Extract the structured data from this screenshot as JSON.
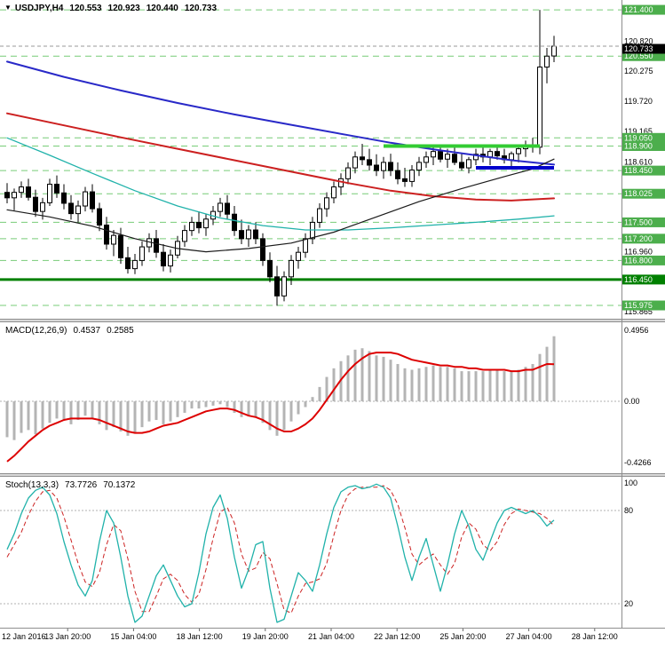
{
  "icons": {
    "symbol_marker": "▼"
  },
  "main": {
    "symbol_period": "USDJPY,H4",
    "open": "120.553",
    "high": "120.923",
    "low": "120.440",
    "close": "120.733"
  },
  "macd": {
    "label": "MACD(12,26,9)",
    "main_value": "0.4537",
    "signal_value": "0.2585"
  },
  "stoch": {
    "label": "Stoch(13,3,3)",
    "main_value": "73.7726",
    "signal_value": "70.1372"
  },
  "colors": {
    "level_line": "#77cc77",
    "level_badge": "#4cae4c",
    "strong_level": "#008000",
    "resistance_segment": "#33cc33",
    "support_segment": "#0000cc",
    "candle_up": "#ffffff",
    "candle_down": "#000000",
    "candle_outline": "#000000",
    "macd_histogram": "#b4b4b4",
    "macd_signal": "#dd0000",
    "stoch_k": "#20b2aa",
    "stoch_d": "#cc2222",
    "current_badge": "#000000",
    "grid_dotted": "#b0b0b0",
    "axis_line": "#8e8e8e"
  },
  "chart_data": [
    {
      "type": "candlestick",
      "symbol": "USDJPY",
      "timeframe": "H4",
      "current": {
        "open": 120.553,
        "high": 120.923,
        "low": 120.44,
        "close": 120.733
      },
      "y_axis_labels": [
        {
          "label": "120.820",
          "price": 120.82
        },
        {
          "label": "120.275",
          "price": 120.275
        },
        {
          "label": "119.720",
          "price": 119.72
        },
        {
          "label": "119.165",
          "price": 119.165
        },
        {
          "label": "118.610",
          "price": 118.61
        },
        {
          "label": "116.960",
          "price": 116.96
        },
        {
          "label": "115.865",
          "price": 115.865
        }
      ],
      "levels": [
        {
          "label": "121.400",
          "price": 121.4
        },
        {
          "label": "120.550",
          "price": 120.55
        },
        {
          "label": "119.050",
          "price": 119.05
        },
        {
          "label": "118.900",
          "price": 118.9
        },
        {
          "label": "118.450",
          "price": 118.45
        },
        {
          "label": "118.025",
          "price": 118.025
        },
        {
          "label": "117.500",
          "price": 117.5
        },
        {
          "label": "117.200",
          "price": 117.2
        },
        {
          "label": "116.800",
          "price": 116.8
        },
        {
          "label": "115.975",
          "price": 115.975
        }
      ],
      "strong_level": {
        "label": "116.450",
        "price": 116.45
      },
      "segments": [
        {
          "name": "resistance-zone-line",
          "price": 118.9,
          "from": 53,
          "to": 75,
          "color": "#33cc33",
          "width": 4
        },
        {
          "name": "support-zone-line",
          "price": 118.5,
          "from": 66,
          "to": 77,
          "color": "#0000cc",
          "width": 4
        }
      ],
      "current_price": {
        "label": "120.733",
        "price": 120.733
      },
      "x_labels": [
        "12 Jan 2016",
        "13 Jan 20:00",
        "15 Jan 04:00",
        "18 Jan 12:00",
        "19 Jan 20:00",
        "21 Jan 04:00",
        "22 Jan 12:00",
        "25 Jan 20:00",
        "27 Jan 04:00",
        "28 Jan 12:00"
      ],
      "moving_averages": [
        {
          "name": "ma-blue",
          "color": "#2929c8",
          "width": 2,
          "points": [
            [
              0,
              120.45
            ],
            [
              8,
              120.17
            ],
            [
              16,
              119.92
            ],
            [
              24,
              119.69
            ],
            [
              32,
              119.48
            ],
            [
              40,
              119.29
            ],
            [
              48,
              119.1
            ],
            [
              54,
              118.96
            ],
            [
              60,
              118.84
            ],
            [
              66,
              118.73
            ],
            [
              71,
              118.64
            ],
            [
              77,
              118.56
            ]
          ]
        },
        {
          "name": "ma-red",
          "color": "#cc2020",
          "width": 2,
          "points": [
            [
              0,
              119.5
            ],
            [
              8,
              119.28
            ],
            [
              16,
              119.06
            ],
            [
              24,
              118.85
            ],
            [
              32,
              118.64
            ],
            [
              40,
              118.43
            ],
            [
              48,
              118.22
            ],
            [
              54,
              118.08
            ],
            [
              60,
              117.98
            ],
            [
              66,
              117.92
            ],
            [
              71,
              117.9
            ],
            [
              77,
              117.94
            ]
          ]
        },
        {
          "name": "ma-teal",
          "color": "#20b2aa",
          "width": 1.3,
          "points": [
            [
              0,
              119.05
            ],
            [
              6,
              118.73
            ],
            [
              12,
              118.4
            ],
            [
              18,
              118.08
            ],
            [
              24,
              117.8
            ],
            [
              30,
              117.58
            ],
            [
              36,
              117.44
            ],
            [
              42,
              117.36
            ],
            [
              48,
              117.36
            ],
            [
              54,
              117.4
            ],
            [
              60,
              117.45
            ],
            [
              66,
              117.5
            ],
            [
              72,
              117.56
            ],
            [
              77,
              117.62
            ]
          ]
        },
        {
          "name": "ma-black",
          "color": "#1a1a1a",
          "width": 1.2,
          "points": [
            [
              0,
              117.73
            ],
            [
              6,
              117.6
            ],
            [
              12,
              117.43
            ],
            [
              18,
              117.2
            ],
            [
              24,
              117.02
            ],
            [
              28,
              116.96
            ],
            [
              34,
              117.02
            ],
            [
              40,
              117.12
            ],
            [
              46,
              117.32
            ],
            [
              52,
              117.6
            ],
            [
              58,
              117.88
            ],
            [
              64,
              118.12
            ],
            [
              70,
              118.34
            ],
            [
              74,
              118.48
            ],
            [
              77,
              118.66
            ]
          ]
        }
      ],
      "candles": [
        [
          118.05,
          118.22,
          117.85,
          117.95
        ],
        [
          117.95,
          118.12,
          117.72,
          118.05
        ],
        [
          118.05,
          118.25,
          117.95,
          118.15
        ],
        [
          118.15,
          118.3,
          117.9,
          117.96
        ],
        [
          117.96,
          118.1,
          117.6,
          117.7
        ],
        [
          117.7,
          117.95,
          117.55,
          117.86
        ],
        [
          117.86,
          118.3,
          117.8,
          118.2
        ],
        [
          118.2,
          118.36,
          117.95,
          118.04
        ],
        [
          118.04,
          118.2,
          117.74,
          117.85
        ],
        [
          117.85,
          118.0,
          117.55,
          117.66
        ],
        [
          117.66,
          117.9,
          117.5,
          117.8
        ],
        [
          117.8,
          118.15,
          117.7,
          118.06
        ],
        [
          118.06,
          118.2,
          117.68,
          117.75
        ],
        [
          117.75,
          117.86,
          117.34,
          117.45
        ],
        [
          117.45,
          117.6,
          117.0,
          117.1
        ],
        [
          117.1,
          117.36,
          116.88,
          117.26
        ],
        [
          117.26,
          117.4,
          116.74,
          116.85
        ],
        [
          116.85,
          117.05,
          116.56,
          116.65
        ],
        [
          116.65,
          116.92,
          116.55,
          116.8
        ],
        [
          116.8,
          117.15,
          116.7,
          117.05
        ],
        [
          117.05,
          117.3,
          116.95,
          117.2
        ],
        [
          117.2,
          117.36,
          116.85,
          116.95
        ],
        [
          116.95,
          117.1,
          116.6,
          116.7
        ],
        [
          116.7,
          117.0,
          116.58,
          116.9
        ],
        [
          116.9,
          117.25,
          116.84,
          117.15
        ],
        [
          117.15,
          117.45,
          117.05,
          117.35
        ],
        [
          117.35,
          117.6,
          117.25,
          117.5
        ],
        [
          117.5,
          117.7,
          117.3,
          117.4
        ],
        [
          117.4,
          117.66,
          117.25,
          117.56
        ],
        [
          117.56,
          117.8,
          117.45,
          117.7
        ],
        [
          117.7,
          117.95,
          117.6,
          117.85
        ],
        [
          117.85,
          118.0,
          117.55,
          117.65
        ],
        [
          117.65,
          117.8,
          117.25,
          117.35
        ],
        [
          117.35,
          117.55,
          117.1,
          117.2
        ],
        [
          117.2,
          117.45,
          117.05,
          117.36
        ],
        [
          117.36,
          117.5,
          117.1,
          117.2
        ],
        [
          117.2,
          117.3,
          116.7,
          116.8
        ],
        [
          116.8,
          116.95,
          116.4,
          116.5
        ],
        [
          116.5,
          116.7,
          115.97,
          116.15
        ],
        [
          116.15,
          116.6,
          116.05,
          116.5
        ],
        [
          116.5,
          116.9,
          116.35,
          116.8
        ],
        [
          116.8,
          117.05,
          116.65,
          116.95
        ],
        [
          116.95,
          117.3,
          116.85,
          117.2
        ],
        [
          117.2,
          117.6,
          117.1,
          117.5
        ],
        [
          117.5,
          117.85,
          117.4,
          117.75
        ],
        [
          117.75,
          118.05,
          117.6,
          117.95
        ],
        [
          117.95,
          118.25,
          117.85,
          118.15
        ],
        [
          118.15,
          118.4,
          118.0,
          118.3
        ],
        [
          118.3,
          118.6,
          118.2,
          118.5
        ],
        [
          118.5,
          118.8,
          118.4,
          118.7
        ],
        [
          118.7,
          118.94,
          118.55,
          118.65
        ],
        [
          118.65,
          118.85,
          118.45,
          118.55
        ],
        [
          118.55,
          118.75,
          118.35,
          118.45
        ],
        [
          118.45,
          118.7,
          118.3,
          118.6
        ],
        [
          118.6,
          118.76,
          118.35,
          118.45
        ],
        [
          118.45,
          118.6,
          118.2,
          118.3
        ],
        [
          118.3,
          118.5,
          118.15,
          118.25
        ],
        [
          118.25,
          118.55,
          118.15,
          118.46
        ],
        [
          118.46,
          118.7,
          118.35,
          118.6
        ],
        [
          118.6,
          118.8,
          118.5,
          118.7
        ],
        [
          118.7,
          118.9,
          118.55,
          118.8
        ],
        [
          118.8,
          118.9,
          118.6,
          118.66
        ],
        [
          118.66,
          118.85,
          118.5,
          118.75
        ],
        [
          118.75,
          118.88,
          118.55,
          118.6
        ],
        [
          118.6,
          118.76,
          118.45,
          118.5
        ],
        [
          118.5,
          118.7,
          118.4,
          118.65
        ],
        [
          118.65,
          118.85,
          118.55,
          118.75
        ],
        [
          118.75,
          118.9,
          118.6,
          118.7
        ],
        [
          118.7,
          118.85,
          118.55,
          118.8
        ],
        [
          118.8,
          118.92,
          118.65,
          118.72
        ],
        [
          118.72,
          118.85,
          118.58,
          118.65
        ],
        [
          118.65,
          118.8,
          118.5,
          118.76
        ],
        [
          118.76,
          118.9,
          118.6,
          118.85
        ],
        [
          118.85,
          119.0,
          118.7,
          118.92
        ],
        [
          118.92,
          119.05,
          118.78,
          118.88
        ],
        [
          118.88,
          121.4,
          118.75,
          120.35
        ],
        [
          120.35,
          120.7,
          120.05,
          120.55
        ],
        [
          120.553,
          120.923,
          120.44,
          120.733
        ]
      ]
    },
    {
      "type": "bar",
      "name": "macd",
      "params": "12,26,9",
      "current": {
        "macd": 0.4537,
        "signal": 0.2585
      },
      "y_axis_labels": [
        "0.4956",
        "0.00",
        "-0.4266"
      ],
      "y_axis_values": [
        0.4956,
        0,
        -0.4266
      ],
      "histogram": [
        -0.25,
        -0.27,
        -0.22,
        -0.2,
        -0.23,
        -0.19,
        -0.15,
        -0.12,
        -0.13,
        -0.16,
        -0.13,
        -0.1,
        -0.12,
        -0.16,
        -0.2,
        -0.18,
        -0.21,
        -0.24,
        -0.22,
        -0.18,
        -0.14,
        -0.13,
        -0.16,
        -0.14,
        -0.11,
        -0.08,
        -0.05,
        -0.05,
        -0.04,
        -0.03,
        -0.02,
        -0.04,
        -0.08,
        -0.11,
        -0.1,
        -0.11,
        -0.15,
        -0.2,
        -0.24,
        -0.2,
        -0.14,
        -0.09,
        -0.04,
        0.03,
        0.1,
        0.17,
        0.23,
        0.28,
        0.32,
        0.36,
        0.37,
        0.35,
        0.32,
        0.31,
        0.29,
        0.26,
        0.23,
        0.22,
        0.23,
        0.24,
        0.25,
        0.24,
        0.24,
        0.23,
        0.21,
        0.21,
        0.21,
        0.21,
        0.22,
        0.22,
        0.21,
        0.21,
        0.22,
        0.24,
        0.26,
        0.33,
        0.38,
        0.4537
      ],
      "signal": [
        -0.42,
        -0.38,
        -0.33,
        -0.28,
        -0.24,
        -0.2,
        -0.17,
        -0.15,
        -0.13,
        -0.12,
        -0.12,
        -0.12,
        -0.12,
        -0.13,
        -0.15,
        -0.17,
        -0.19,
        -0.21,
        -0.22,
        -0.22,
        -0.21,
        -0.19,
        -0.17,
        -0.16,
        -0.15,
        -0.13,
        -0.11,
        -0.09,
        -0.07,
        -0.06,
        -0.05,
        -0.05,
        -0.06,
        -0.08,
        -0.1,
        -0.11,
        -0.13,
        -0.16,
        -0.19,
        -0.21,
        -0.21,
        -0.19,
        -0.16,
        -0.12,
        -0.06,
        0.01,
        0.08,
        0.15,
        0.21,
        0.26,
        0.3,
        0.33,
        0.34,
        0.34,
        0.34,
        0.33,
        0.31,
        0.29,
        0.28,
        0.27,
        0.26,
        0.25,
        0.25,
        0.24,
        0.24,
        0.23,
        0.23,
        0.22,
        0.22,
        0.22,
        0.22,
        0.21,
        0.21,
        0.22,
        0.22,
        0.24,
        0.26,
        0.2585
      ]
    },
    {
      "type": "line",
      "name": "stochastic",
      "params": "13,3,3",
      "current": {
        "k": 73.7726,
        "d": 70.1372
      },
      "y_axis_labels": [
        "100",
        "80",
        "20"
      ],
      "y_axis_values": [
        100,
        80,
        20
      ],
      "level_lines": [
        80,
        20
      ],
      "k": [
        55,
        65,
        78,
        88,
        93,
        95,
        90,
        78,
        60,
        45,
        32,
        25,
        35,
        60,
        80,
        72,
        50,
        25,
        8,
        12,
        25,
        38,
        45,
        35,
        25,
        18,
        20,
        40,
        65,
        82,
        90,
        75,
        50,
        30,
        42,
        58,
        60,
        30,
        8,
        10,
        25,
        40,
        35,
        28,
        45,
        65,
        82,
        92,
        95,
        96,
        94,
        95,
        97,
        95,
        88,
        70,
        50,
        35,
        50,
        62,
        45,
        28,
        45,
        65,
        80,
        70,
        55,
        48,
        60,
        72,
        80,
        82,
        80,
        78,
        80,
        76,
        70,
        73.77
      ],
      "d": [
        50,
        58,
        66,
        77,
        86,
        92,
        93,
        88,
        76,
        61,
        46,
        34,
        31,
        40,
        58,
        71,
        67,
        49,
        28,
        15,
        15,
        25,
        36,
        39,
        35,
        26,
        21,
        26,
        42,
        62,
        79,
        82,
        72,
        52,
        41,
        43,
        53,
        49,
        33,
        16,
        14,
        25,
        33,
        34,
        36,
        46,
        64,
        80,
        90,
        94,
        95,
        95,
        95,
        96,
        93,
        84,
        69,
        52,
        45,
        49,
        52,
        45,
        39,
        46,
        63,
        72,
        68,
        58,
        54,
        60,
        71,
        78,
        81,
        80,
        79,
        78,
        75,
        70.14
      ]
    }
  ]
}
